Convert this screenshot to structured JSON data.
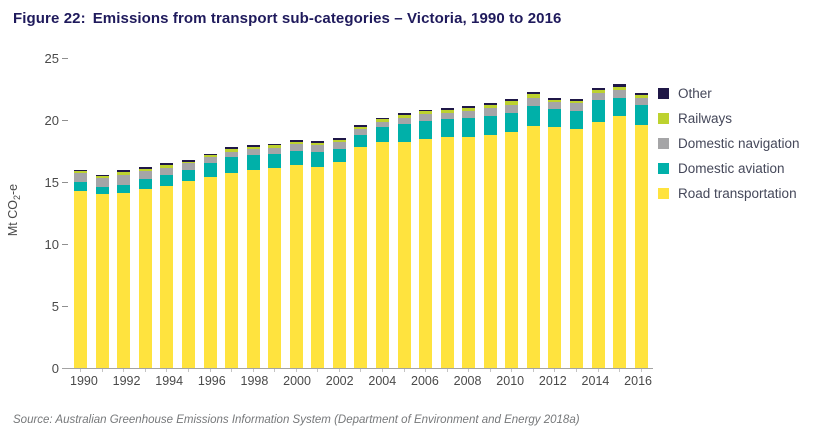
{
  "figure": {
    "title_label": "Figure 22:",
    "title_text": "Emissions from transport sub-categories – Victoria, 1990 to 2016",
    "source": "Source: Australian Greenhouse Emissions Information System (Department of Environment and Energy 2018a)"
  },
  "chart_data": {
    "type": "bar",
    "stacked": true,
    "title": "Emissions from transport sub-categories – Victoria, 1990 to 2016",
    "xlabel": "",
    "ylabel": "Mt CO2-e",
    "ylabel_parts": {
      "prefix": "Mt CO",
      "sub": "2",
      "suffix": "-e"
    },
    "ylim": [
      0,
      25
    ],
    "yticks": [
      0,
      5,
      10,
      15,
      20,
      25
    ],
    "xtick_label_every": 2,
    "grid": false,
    "legend_position": "right",
    "categories": [
      1990,
      1991,
      1992,
      1993,
      1994,
      1995,
      1996,
      1997,
      1998,
      1999,
      2000,
      2001,
      2002,
      2003,
      2004,
      2005,
      2006,
      2007,
      2008,
      2009,
      2010,
      2011,
      2012,
      2013,
      2014,
      2015,
      2016
    ],
    "series": [
      {
        "name": "Road transportation",
        "color": "#FFE33E",
        "values": [
          14.3,
          14.0,
          14.1,
          14.4,
          14.7,
          15.1,
          15.4,
          15.75,
          16.0,
          16.1,
          16.4,
          16.2,
          16.6,
          17.85,
          18.25,
          18.25,
          18.45,
          18.6,
          18.65,
          18.8,
          19.0,
          19.5,
          19.4,
          19.3,
          19.8,
          20.3,
          19.6
        ]
      },
      {
        "name": "Domestic aviation",
        "color": "#00B0A9",
        "values": [
          0.7,
          0.6,
          0.7,
          0.85,
          0.9,
          0.9,
          1.1,
          1.25,
          1.2,
          1.2,
          1.1,
          1.2,
          1.05,
          0.95,
          1.15,
          1.4,
          1.45,
          1.5,
          1.55,
          1.55,
          1.55,
          1.6,
          1.45,
          1.45,
          1.8,
          1.5,
          1.6
        ]
      },
      {
        "name": "Domestic navigation",
        "color": "#A5A5A7",
        "values": [
          0.7,
          0.7,
          0.8,
          0.6,
          0.55,
          0.5,
          0.5,
          0.45,
          0.45,
          0.45,
          0.55,
          0.55,
          0.55,
          0.45,
          0.45,
          0.5,
          0.55,
          0.5,
          0.5,
          0.6,
          0.7,
          0.7,
          0.6,
          0.6,
          0.6,
          0.65,
          0.55
        ]
      },
      {
        "name": "Railways",
        "color": "#BDD22F",
        "values": [
          0.15,
          0.15,
          0.2,
          0.2,
          0.2,
          0.15,
          0.15,
          0.2,
          0.2,
          0.2,
          0.2,
          0.2,
          0.2,
          0.2,
          0.2,
          0.25,
          0.25,
          0.25,
          0.25,
          0.25,
          0.3,
          0.3,
          0.2,
          0.2,
          0.25,
          0.25,
          0.25
        ]
      },
      {
        "name": "Other",
        "color": "#1F1747",
        "values": [
          0.15,
          0.15,
          0.15,
          0.15,
          0.15,
          0.15,
          0.15,
          0.15,
          0.15,
          0.15,
          0.15,
          0.15,
          0.15,
          0.15,
          0.15,
          0.15,
          0.15,
          0.15,
          0.15,
          0.15,
          0.15,
          0.2,
          0.15,
          0.15,
          0.15,
          0.2,
          0.2
        ]
      }
    ],
    "legend": [
      {
        "label": "Other",
        "color": "#1F1747"
      },
      {
        "label": "Railways",
        "color": "#BDD22F"
      },
      {
        "label": "Domestic navigation",
        "color": "#A5A5A7"
      },
      {
        "label": "Domestic aviation",
        "color": "#00B0A9"
      },
      {
        "label": "Road transportation",
        "color": "#FFE33E"
      }
    ]
  },
  "colors": {
    "title": "#1F1A5C",
    "axis_text": "#4A4A4A",
    "axis_line": "#A3A3A3",
    "legend_text": "#45485A",
    "source_text": "#76787A",
    "background": "#FFFFFF"
  }
}
